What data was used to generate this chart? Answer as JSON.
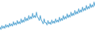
{
  "title": "",
  "line_color": "#5ba8d4",
  "background_color": "#ffffff",
  "values": [
    72,
    68,
    75,
    70,
    74,
    70,
    77,
    72,
    76,
    72,
    79,
    74,
    78,
    74,
    82,
    76,
    80,
    76,
    84,
    78,
    82,
    78,
    87,
    80,
    85,
    81,
    90,
    83,
    88,
    84,
    93,
    86,
    91,
    87,
    97,
    89,
    93,
    89,
    99,
    91,
    88,
    84,
    93,
    85,
    82,
    78,
    87,
    80,
    80,
    76,
    84,
    78,
    81,
    77,
    85,
    79,
    83,
    79,
    87,
    81,
    85,
    81,
    90,
    83,
    88,
    84,
    93,
    86,
    91,
    87,
    96,
    89,
    94,
    90,
    99,
    92,
    97,
    93,
    102,
    95,
    100,
    96,
    105,
    98,
    103,
    99,
    108,
    101,
    106,
    102,
    111,
    104,
    109,
    105,
    114,
    107,
    112,
    108,
    117,
    110
  ],
  "ylim_min": 60,
  "ylim_max": 122,
  "linewidth": 0.7
}
